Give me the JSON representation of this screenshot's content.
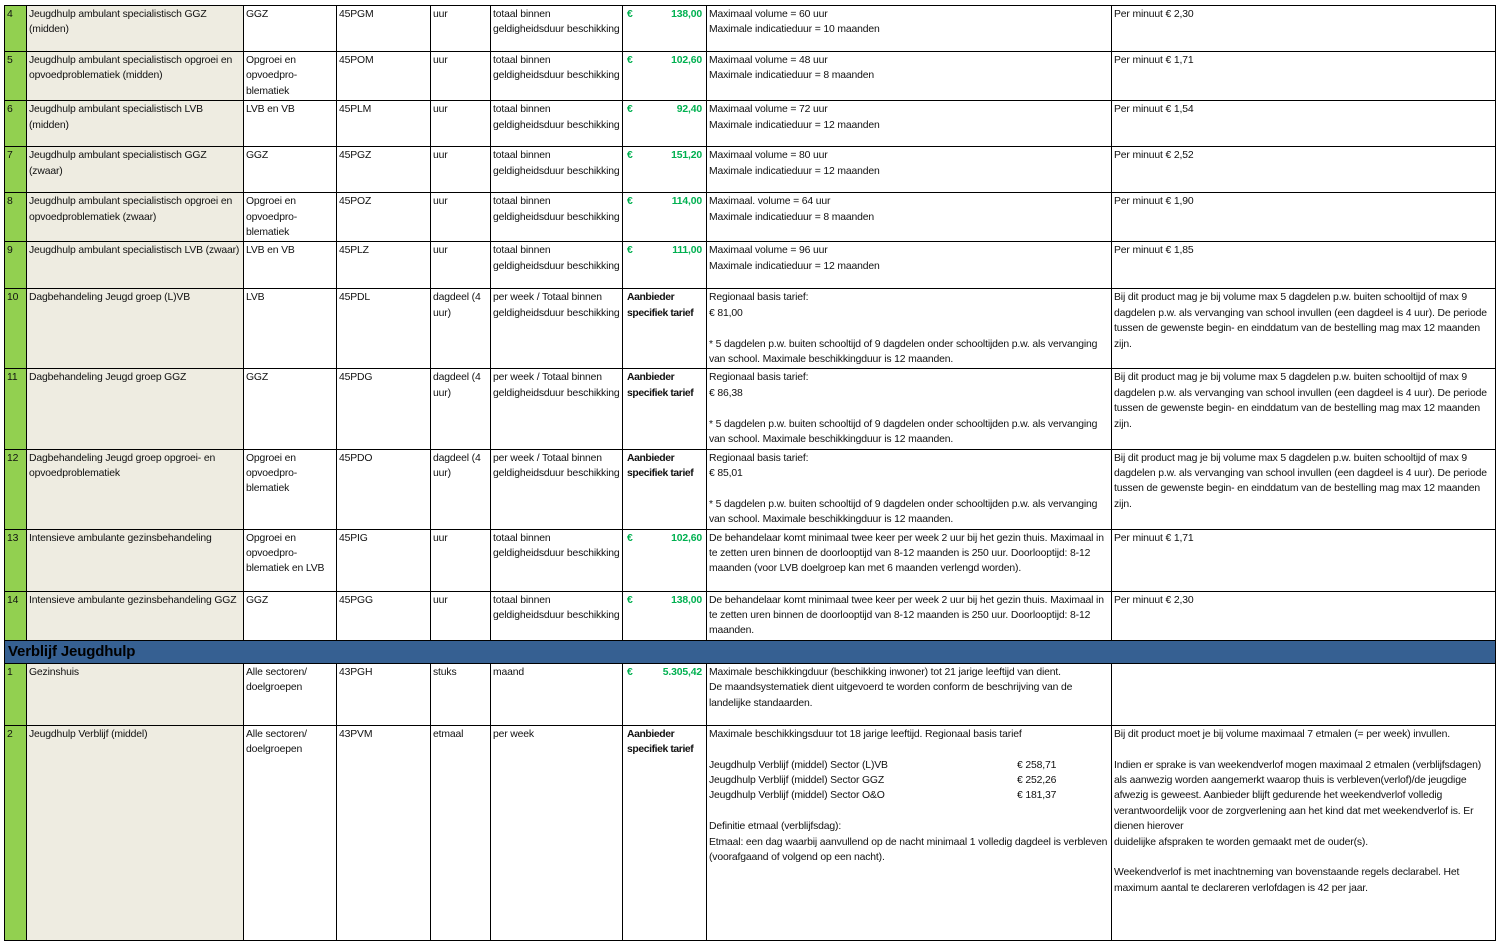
{
  "colors": {
    "number_column": "#92d050",
    "name_column": "#eeece1",
    "section_header": "#366092",
    "price_green": "#00b050"
  },
  "rows_a": [
    {
      "nr": "4",
      "name": "Jeugdhulp ambulant specialistisch GGZ (midden)",
      "doelgroep": "GGZ",
      "code": "45PGM",
      "eenheid": "uur",
      "frequentie": "totaal binnen geldigheidsduur beschikking",
      "price_symbol": "€",
      "price": "138,00",
      "omschrijving": "Maximaal volume = 60 uur\nMaximale indicatieduur = 10 maanden",
      "toelichting": "Per minuut € 2,30"
    },
    {
      "nr": "5",
      "name": "Jeugdhulp ambulant specialistisch opgroei en opvoedproblematiek (midden)",
      "doelgroep": "Opgroei en opvoedpro-blematiek",
      "code": "45POM",
      "eenheid": "uur",
      "frequentie": "totaal binnen geldigheidsduur beschikking",
      "price_symbol": "€",
      "price": "102,60",
      "omschrijving": "Maximaal volume = 48 uur\nMaximale indicatieduur = 8 maanden",
      "toelichting": "Per minuut € 1,71"
    },
    {
      "nr": "6",
      "name": "Jeugdhulp ambulant specialistisch LVB (midden)",
      "doelgroep": "LVB en VB",
      "code": "45PLM",
      "eenheid": "uur",
      "frequentie": "totaal binnen geldigheidsduur beschikking",
      "price_symbol": "€",
      "price": "92,40",
      "omschrijving": "Maximaal volume = 72 uur\nMaximale indicatieduur = 12 maanden",
      "toelichting": "Per minuut € 1,54"
    },
    {
      "nr": "7",
      "name": "Jeugdhulp ambulant specialistisch GGZ (zwaar)",
      "doelgroep": "GGZ",
      "code": "45PGZ",
      "eenheid": "uur",
      "frequentie": "totaal binnen geldigheidsduur beschikking",
      "price_symbol": "€",
      "price": "151,20",
      "omschrijving": "Maximaal volume = 80 uur\nMaximale indicatieduur = 12 maanden",
      "toelichting": "Per minuut € 2,52"
    },
    {
      "nr": "8",
      "name": "Jeugdhulp ambulant specialistisch opgroei en opvoedproblematiek (zwaar)",
      "doelgroep": "Opgroei en opvoedpro-blematiek",
      "code": "45POZ",
      "eenheid": "uur",
      "frequentie": "totaal binnen geldigheidsduur beschikking",
      "price_symbol": "€",
      "price": "114,00",
      "omschrijving": "Maximaal. volume = 64 uur\nMaximale indicatieduur = 8 maanden",
      "toelichting": "Per minuut € 1,90"
    },
    {
      "nr": "9",
      "name": "Jeugdhulp ambulant specialistisch LVB (zwaar)",
      "doelgroep": "LVB en VB",
      "code": "45PLZ",
      "eenheid": "uur",
      "frequentie": "totaal binnen geldigheidsduur beschikking",
      "price_symbol": "€",
      "price": "111,00",
      "omschrijving": "Maximaal volume = 96 uur\nMaximale indicatieduur = 12 maanden",
      "toelichting": "Per minuut € 1,85"
    },
    {
      "nr": "10",
      "name": "Dagbehandeling Jeugd groep (L)VB",
      "doelgroep": "LVB",
      "code": "45PDL",
      "eenheid": "dagdeel (4 uur)",
      "frequentie": "per week / Totaal binnen geldigheidsduur beschikking",
      "price_text": "Aanbieder specifiek tarief",
      "omschrijving": "Regionaal basis  tarief:\n€            81,00\n\n* 5 dagdelen p.w. buiten schooltijd of 9 dagdelen onder schooltijden p.w. als vervanging van school. Maximale beschikkingduur is 12 maanden.",
      "toelichting": "Bij dit product mag je bij volume max 5 dagdelen p.w. buiten schooltijd of max 9 dagdelen p.w. als vervanging van school invullen (een dagdeel is 4 uur). De periode tussen de gewenste begin- en einddatum van de bestelling mag max 12 maanden zijn."
    },
    {
      "nr": "11",
      "name": "Dagbehandeling Jeugd groep GGZ",
      "doelgroep": "GGZ",
      "code": "45PDG",
      "eenheid": "dagdeel (4 uur)",
      "frequentie": "per week / Totaal binnen geldigheidsduur beschikking",
      "price_text": "Aanbieder specifiek tarief",
      "omschrijving": "Regionaal basis  tarief:\n€             86,38\n\n* 5 dagdelen p.w. buiten schooltijd of 9 dagdelen onder schooltijden p.w. als vervanging van school. Maximale beschikkingduur is 12 maanden.",
      "toelichting": "Bij dit product mag je bij volume max 5 dagdelen p.w. buiten schooltijd of max 9 dagdelen p.w. als vervanging van school invullen (een dagdeel is 4 uur). De periode tussen de gewenste begin- en einddatum van de bestelling mag max 12 maanden zijn."
    },
    {
      "nr": "12",
      "name": "Dagbehandeling Jeugd groep opgroei- en opvoedproblematiek",
      "doelgroep": "Opgroei en opvoedpro-blematiek",
      "code": "45PDO",
      "eenheid": "dagdeel (4 uur)",
      "frequentie": "per week / Totaal binnen geldigheidsduur beschikking",
      "price_text": "Aanbieder specifiek tarief",
      "omschrijving": "Regionaal basis  tarief:\n€             85,01\n\n* 5 dagdelen p.w. buiten schooltijd of 9 dagdelen onder schooltijden p.w. als vervanging van school. Maximale beschikkingduur is 12 maanden.",
      "toelichting": "Bij dit product mag je bij volume max 5 dagdelen p.w. buiten schooltijd of max 9 dagdelen p.w. als vervanging van school invullen (een dagdeel is 4 uur). De periode tussen de gewenste begin- en einddatum van de bestelling mag max 12 maanden zijn."
    },
    {
      "nr": "13",
      "name": "Intensieve ambulante gezinsbehandeling",
      "doelgroep": "Opgroei en opvoedpro-blematiek en LVB",
      "code": "45PIG",
      "eenheid": "uur",
      "frequentie": "totaal binnen geldigheidsduur beschikking",
      "price_symbol": "€",
      "price": "102,60",
      "omschrijving": "De behandelaar komt minimaal twee keer per week 2 uur bij het gezin thuis. Maximaal in te zetten uren binnen de doorlooptijd van 8-12 maanden is 250 uur. Doorlooptijd: 8-12 maanden (voor LVB doelgroep kan met 6 maanden verlengd worden).",
      "toelichting": "Per minuut € 1,71"
    },
    {
      "nr": "14",
      "name": "Intensieve ambulante gezinsbehandeling GGZ",
      "doelgroep": "GGZ",
      "code": "45PGG",
      "eenheid": "uur",
      "frequentie": "totaal binnen geldigheidsduur beschikking",
      "price_symbol": "€",
      "price": "138,00",
      "omschrijving": "De behandelaar komt minimaal twee keer per week 2 uur bij het gezin thuis. Maximaal in te zetten uren binnen de doorlooptijd van 8-12 maanden is 250 uur. Doorlooptijd: 8-12 maanden.",
      "toelichting": "Per minuut € 2,30"
    }
  ],
  "section_title": "Verblijf Jeugdhulp",
  "rows_b": [
    {
      "nr": "1",
      "name": "Gezinshuis",
      "doelgroep": "Alle sectoren/ doelgroepen",
      "code": "43PGH",
      "eenheid": "stuks",
      "frequentie": "maand",
      "price_symbol": "€",
      "price": "5.305,42",
      "omschrijving": "Maximale beschikkingduur (beschikking inwoner) tot 21 jarige leeftijd van dient.\nDe maandsystematiek dient uitgevoerd te worden conform de beschrijving van de landelijke standaarden.",
      "toelichting": ""
    },
    {
      "nr": "2",
      "name": "Jeugdhulp Verblijf (middel)",
      "doelgroep": "Alle sectoren/ doelgroepen",
      "code": "43PVM",
      "eenheid": "etmaal",
      "frequentie": "per week",
      "price_text": "Aanbieder specifiek tarief",
      "omschrijving_intro": "Maximale beschikkingsduur tot 18 jarige leeftijd. Regionaal basis tarief",
      "tarieven": [
        {
          "label": "Jeugdhulp Verblijf (middel) Sector (L)VB",
          "amount": "€ 258,71"
        },
        {
          "label": "Jeugdhulp Verblijf (middel) Sector GGZ",
          "amount": " € 252,26"
        },
        {
          "label": "Jeugdhulp Verblijf (middel) Sector O&O",
          "amount": "€ 181,37"
        }
      ],
      "omschrijving_outro": "Definitie etmaal (verblijfsdag):\nEtmaal: een dag waarbij aanvullend op de nacht minimaal 1 volledig dagdeel is verbleven (voorafgaand of volgend op een nacht).",
      "toelichting": "Bij dit product moet je bij volume maximaal 7 etmalen (= per week) invullen.\n\nIndien er sprake is van weekendverlof mogen maximaal 2 etmalen (verblijfsdagen) als aanwezig worden aangemerkt waarop thuis is verbleven(verlof)/de jeugdige afwezig is geweest. Aanbieder blijft gedurende het weekendverlof volledig\nverantwoordelijk voor de zorgverlening aan het kind dat met weekendverlof is. Er dienen hierover\nduidelijke afspraken te worden gemaakt met de ouder(s).\n\nWeekendverlof is met inachtneming van bovenstaande regels declarabel. Het maximum aantal te declareren verlofdagen is 42 per jaar."
    }
  ]
}
